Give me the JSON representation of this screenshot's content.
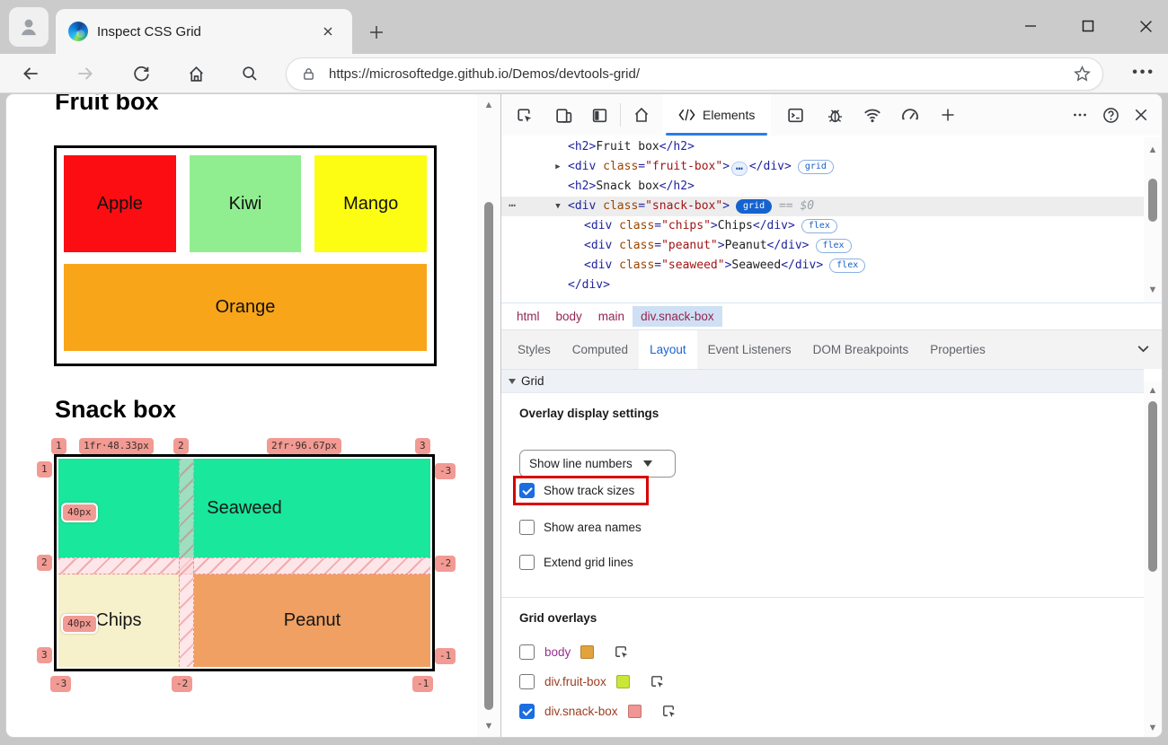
{
  "window": {
    "tab_title": "Inspect CSS Grid",
    "url": "https://microsoftedge.github.io/Demos/devtools-grid/"
  },
  "page": {
    "fruit": {
      "heading": "Fruit box",
      "items": [
        {
          "label": "Apple",
          "color": "#fb0d12",
          "span": false
        },
        {
          "label": "Kiwi",
          "color": "#90ee90",
          "span": false
        },
        {
          "label": "Mango",
          "color": "#fdfd13",
          "span": false
        },
        {
          "label": "Orange",
          "color": "#f9a51a",
          "span": true
        }
      ]
    },
    "snack": {
      "heading": "Snack box",
      "items": {
        "seaweed": {
          "label": "Seaweed",
          "color": "#18e79c"
        },
        "chips": {
          "label": "Chips",
          "color": "#f6f0cb"
        },
        "peanut": {
          "label": "Peanut",
          "color": "#efa062"
        }
      },
      "overlay": {
        "col_lines_top": [
          "1",
          "2",
          "3"
        ],
        "col_tracks": [
          "1fr·48.33px",
          "2fr·96.67px"
        ],
        "row_lines_left": [
          "1",
          "2",
          "3"
        ],
        "row_tracks": [
          "40px",
          "40px"
        ],
        "row_lines_right": [
          "-3",
          "-2",
          "-1"
        ],
        "col_lines_bottom": [
          "-3",
          "-2",
          "-1"
        ]
      }
    }
  },
  "devtools": {
    "toolbar": {
      "elements_label": "Elements"
    },
    "tree": {
      "lines": [
        {
          "lvl": 1,
          "tokens": [
            [
              "tag",
              "<h2>"
            ],
            [
              "txt",
              "Fruit box"
            ],
            [
              "tag",
              "</h2>"
            ]
          ]
        },
        {
          "lvl": 1,
          "arrow": "▶",
          "tokens": [
            [
              "tag",
              "<div"
            ],
            [
              "attr",
              " class"
            ],
            [
              "tag",
              "="
            ],
            [
              "val",
              "\"fruit-box\""
            ],
            [
              "tag",
              ">"
            ],
            [
              "dots",
              "…"
            ],
            [
              "tag",
              "</div>"
            ],
            [
              "badge-outline",
              "grid"
            ]
          ]
        },
        {
          "lvl": 1,
          "tokens": [
            [
              "tag",
              "<h2>"
            ],
            [
              "txt",
              "Snack box"
            ],
            [
              "tag",
              "</h2>"
            ]
          ]
        },
        {
          "lvl": 1,
          "arrow": "▼",
          "selected": true,
          "gutter": "⋯",
          "tokens": [
            [
              "tag",
              "<div"
            ],
            [
              "attr",
              " class"
            ],
            [
              "tag",
              "="
            ],
            [
              "val",
              "\"snack-box\""
            ],
            [
              "tag",
              ">"
            ],
            [
              "badge-fill",
              "grid"
            ],
            [
              "dim",
              "  == "
            ],
            [
              "dimvar",
              "$0"
            ]
          ]
        },
        {
          "lvl": 2,
          "tokens": [
            [
              "tag",
              "<div"
            ],
            [
              "attr",
              " class"
            ],
            [
              "tag",
              "="
            ],
            [
              "val",
              "\"chips\""
            ],
            [
              "tag",
              ">"
            ],
            [
              "txt",
              "Chips"
            ],
            [
              "tag",
              "</div>"
            ],
            [
              "badge-outline",
              "flex"
            ]
          ]
        },
        {
          "lvl": 2,
          "tokens": [
            [
              "tag",
              "<div"
            ],
            [
              "attr",
              " class"
            ],
            [
              "tag",
              "="
            ],
            [
              "val",
              "\"peanut\""
            ],
            [
              "tag",
              ">"
            ],
            [
              "txt",
              "Peanut"
            ],
            [
              "tag",
              "</div>"
            ],
            [
              "badge-outline",
              "flex"
            ]
          ]
        },
        {
          "lvl": 2,
          "tokens": [
            [
              "tag",
              "<div"
            ],
            [
              "attr",
              " class"
            ],
            [
              "tag",
              "="
            ],
            [
              "val",
              "\"seaweed\""
            ],
            [
              "tag",
              ">"
            ],
            [
              "txt",
              "Seaweed"
            ],
            [
              "tag",
              "</div>"
            ],
            [
              "badge-outline",
              "flex"
            ]
          ]
        },
        {
          "lvl": 1,
          "tokens": [
            [
              "tag",
              "</div>"
            ]
          ]
        }
      ]
    },
    "breadcrumbs": [
      {
        "label": "html",
        "active": false
      },
      {
        "label": "body",
        "active": false
      },
      {
        "label": "main",
        "active": false
      },
      {
        "label": "div.snack-box",
        "active": true
      }
    ],
    "panel_tabs": [
      {
        "label": "Styles",
        "active": false
      },
      {
        "label": "Computed",
        "active": false
      },
      {
        "label": "Layout",
        "active": true
      },
      {
        "label": "Event Listeners",
        "active": false
      },
      {
        "label": "DOM Breakpoints",
        "active": false
      },
      {
        "label": "Properties",
        "active": false
      }
    ],
    "grid_section_label": "Grid",
    "layout_pane": {
      "overlay_settings_heading": "Overlay display settings",
      "line_numbers_dropdown": "Show line numbers",
      "checkboxes": [
        {
          "label": "Show track sizes",
          "checked": true,
          "highlighted": true
        },
        {
          "label": "Show area names",
          "checked": false,
          "highlighted": false
        },
        {
          "label": "Extend grid lines",
          "checked": false,
          "highlighted": false
        }
      ],
      "grid_overlays_heading": "Grid overlays",
      "overlays": [
        {
          "label": "body",
          "checked": false,
          "swatch": "#e3a33c",
          "swatch_border": "#b7822e",
          "label_color": "#963090"
        },
        {
          "label": "div.fruit-box",
          "checked": false,
          "swatch": "#cbe637",
          "swatch_border": "#9fb62c",
          "label_color": "#9c3c22"
        },
        {
          "label": "div.snack-box",
          "checked": true,
          "swatch": "#f09693",
          "swatch_border": "#c0736f",
          "label_color": "#9c3c22"
        }
      ]
    }
  }
}
